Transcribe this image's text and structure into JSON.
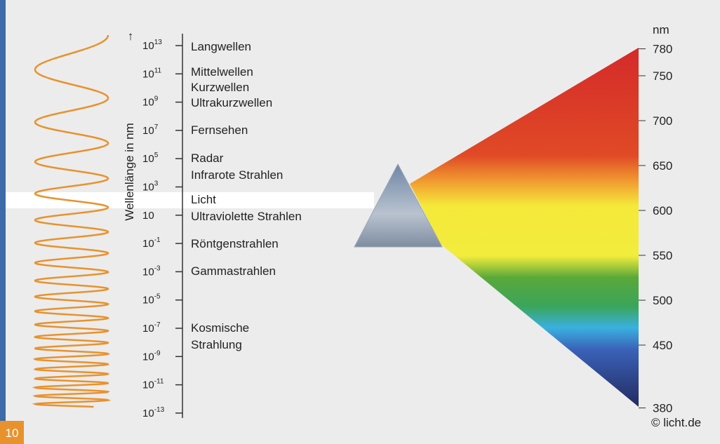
{
  "axis_label": "Wellenlänge in nm",
  "wavelength_ticks": [
    {
      "mantissa": "10",
      "exponent": "13"
    },
    {
      "mantissa": "10",
      "exponent": "11"
    },
    {
      "mantissa": "10",
      "exponent": "9"
    },
    {
      "mantissa": "10",
      "exponent": "7"
    },
    {
      "mantissa": "10",
      "exponent": "5"
    },
    {
      "mantissa": "10",
      "exponent": "3"
    },
    {
      "mantissa": "10"
    },
    {
      "mantissa": "10",
      "exponent": "-1"
    },
    {
      "mantissa": "10",
      "exponent": "-3"
    },
    {
      "mantissa": "10",
      "exponent": "-5"
    },
    {
      "mantissa": "10",
      "exponent": "-7"
    },
    {
      "mantissa": "10",
      "exponent": "-9"
    },
    {
      "mantissa": "10",
      "exponent": "-11"
    },
    {
      "mantissa": "10",
      "exponent": "-13"
    }
  ],
  "bands": [
    "Langwellen",
    "Mittelwellen",
    "Kurzwellen",
    "Ultrakurzwellen",
    "Fernsehen",
    "Radar",
    "Infrarote Strahlen",
    "Licht",
    "Ultraviolette Strahlen",
    "Röntgenstrahlen",
    "Gammastrahlen",
    "Kosmische",
    "Strahlung"
  ],
  "spectrum_unit": "nm",
  "spectrum_ticks": [
    780,
    750,
    700,
    650,
    600,
    550,
    500,
    450,
    380
  ],
  "copyright": "© licht.de",
  "page_number": "10"
}
